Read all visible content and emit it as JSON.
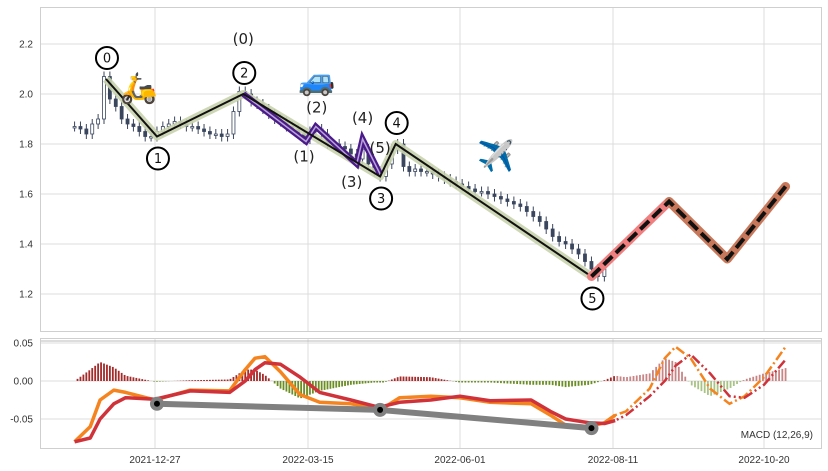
{
  "chart_data": [
    {
      "type": "candlestick",
      "title": "",
      "ylim": [
        1.05,
        2.35
      ],
      "yticks": [
        "1.2",
        "1.4",
        "1.6",
        "1.8",
        "2.0",
        "2.2"
      ],
      "grid": true,
      "price": {
        "start_date": "2021-11-16",
        "step_days": 3,
        "close": [
          1.87,
          1.86,
          1.84,
          1.88,
          1.9,
          2.07,
          1.98,
          1.95,
          1.9,
          1.88,
          1.87,
          1.85,
          1.83,
          1.83,
          1.85,
          1.87,
          1.88,
          1.89,
          1.88,
          1.87,
          1.87,
          1.86,
          1.85,
          1.84,
          1.84,
          1.83,
          1.84,
          1.93,
          2.01,
          2.0,
          1.97,
          1.96,
          1.94,
          1.92,
          1.9,
          1.89,
          1.87,
          1.86,
          1.84,
          1.82,
          1.85,
          1.86,
          1.84,
          1.8,
          1.8,
          1.79,
          1.78,
          1.76,
          1.74,
          1.78,
          1.72,
          1.69,
          1.67,
          1.72,
          1.78,
          1.8,
          1.71,
          1.69,
          1.7,
          1.69,
          1.69,
          1.68,
          1.67,
          1.66,
          1.65,
          1.64,
          1.63,
          1.62,
          1.61,
          1.61,
          1.6,
          1.59,
          1.58,
          1.57,
          1.56,
          1.55,
          1.53,
          1.51,
          1.49,
          1.46,
          1.43,
          1.41,
          1.4,
          1.38,
          1.36,
          1.33,
          1.3,
          1.27,
          1.3
        ]
      },
      "waves": [
        {
          "label": "0",
          "date": "2021-12-02",
          "value": 2.06,
          "pos": "above"
        },
        {
          "label": "1",
          "date": "2021-12-28",
          "value": 1.83,
          "pos": "below"
        },
        {
          "label": "2",
          "date": "2022-02-10",
          "value": 2.0,
          "pos": "above"
        },
        {
          "label": "3",
          "date": "2022-04-21",
          "value": 1.67,
          "pos": "below"
        },
        {
          "label": "4",
          "date": "2022-04-29",
          "value": 1.8,
          "pos": "above"
        },
        {
          "label": "5",
          "date": "2022-08-01",
          "value": 1.27,
          "pos": "below"
        }
      ],
      "subwaves": [
        {
          "label": "(0)",
          "date": "2022-02-10",
          "value": 2.0
        },
        {
          "label": "(1)",
          "date": "2022-03-14",
          "value": 1.81
        },
        {
          "label": "(2)",
          "date": "2022-03-19",
          "value": 1.87
        },
        {
          "label": "(3)",
          "date": "2022-04-09",
          "value": 1.72
        },
        {
          "label": "(4)",
          "date": "2022-04-12",
          "value": 1.82
        },
        {
          "label": "(5)",
          "date": "2022-04-21",
          "value": 1.68
        }
      ],
      "projection": [
        {
          "date": "2022-08-01",
          "value": 1.27
        },
        {
          "date": "2022-09-06",
          "value": 1.57
        },
        {
          "date": "2022-10-03",
          "value": 1.34
        },
        {
          "date": "2022-10-30",
          "value": 1.63
        }
      ],
      "icons": [
        "scooter-emoji",
        "car-emoji",
        "airplane-emoji"
      ],
      "emoji": {
        "scooter": "🛵",
        "car": "🚙",
        "airplane": "✈️"
      }
    },
    {
      "type": "line",
      "title": "MACD (12,26,9)",
      "ylim": [
        -0.09,
        0.055
      ],
      "yticks": [
        "0.05",
        "0.00",
        "-0.05"
      ],
      "xticks": [
        "2021-12-27",
        "2022-03-15",
        "2022-06-01",
        "2022-08-11",
        "2022-10-20"
      ],
      "projection_start": "2022-08-12",
      "dates": [
        "2021-11-16",
        "2021-11-24",
        "2021-11-29",
        "2021-12-06",
        "2021-12-12",
        "2021-12-27",
        "2022-01-14",
        "2022-02-03",
        "2022-02-11",
        "2022-02-16",
        "2022-02-21",
        "2022-03-01",
        "2022-03-11",
        "2022-03-21",
        "2022-04-06",
        "2022-04-18",
        "2022-04-23",
        "2022-05-01",
        "2022-05-17",
        "2022-06-01",
        "2022-06-15",
        "2022-07-04",
        "2022-07-13",
        "2022-07-20",
        "2022-07-31",
        "2022-08-07",
        "2022-08-12",
        "2022-08-17",
        "2022-08-28",
        "2022-09-04",
        "2022-09-09",
        "2022-09-16",
        "2022-09-25",
        "2022-10-04",
        "2022-10-11",
        "2022-10-20",
        "2022-10-30"
      ],
      "series": [
        {
          "name": "MACD",
          "color": "#f5841f",
          "values": [
            -0.08,
            -0.06,
            -0.025,
            -0.012,
            -0.015,
            -0.025,
            -0.012,
            -0.013,
            0.015,
            0.03,
            0.032,
            0.012,
            -0.018,
            -0.028,
            -0.03,
            -0.035,
            -0.035,
            -0.022,
            -0.02,
            -0.022,
            -0.028,
            -0.03,
            -0.045,
            -0.058,
            -0.06,
            -0.055,
            -0.045,
            -0.04,
            -0.01,
            0.03,
            0.045,
            0.03,
            -0.01,
            -0.03,
            -0.02,
            0.005,
            0.045
          ]
        },
        {
          "name": "Signal",
          "color": "#d0323a",
          "values": [
            -0.08,
            -0.075,
            -0.05,
            -0.03,
            -0.022,
            -0.024,
            -0.013,
            -0.015,
            0.0,
            0.015,
            0.024,
            0.022,
            0.005,
            -0.015,
            -0.025,
            -0.033,
            -0.033,
            -0.028,
            -0.025,
            -0.02,
            -0.026,
            -0.025,
            -0.04,
            -0.05,
            -0.055,
            -0.056,
            -0.052,
            -0.045,
            -0.02,
            0.0,
            0.02,
            0.035,
            0.01,
            -0.02,
            -0.022,
            -0.005,
            0.028
          ]
        }
      ],
      "divergence": [
        {
          "date": "2021-12-28",
          "value": -0.03
        },
        {
          "date": "2022-04-21",
          "value": -0.038
        },
        {
          "date": "2022-08-01",
          "value": -0.062
        }
      ]
    }
  ],
  "colors": {
    "candle": "#3a465e",
    "wave_glow": "#c9d3ad",
    "wave_line": "#111111",
    "subwave": "#4b1a8a",
    "proj_up": "#f08080",
    "proj_rest": "#c8785a",
    "hist_pos": "#a52a2a",
    "hist_neg": "#6b8e23",
    "hist_pos_proj": "#c98585",
    "hist_neg_proj": "#a9c385",
    "divergence": "#808080",
    "grid": "#dcdcdc"
  }
}
